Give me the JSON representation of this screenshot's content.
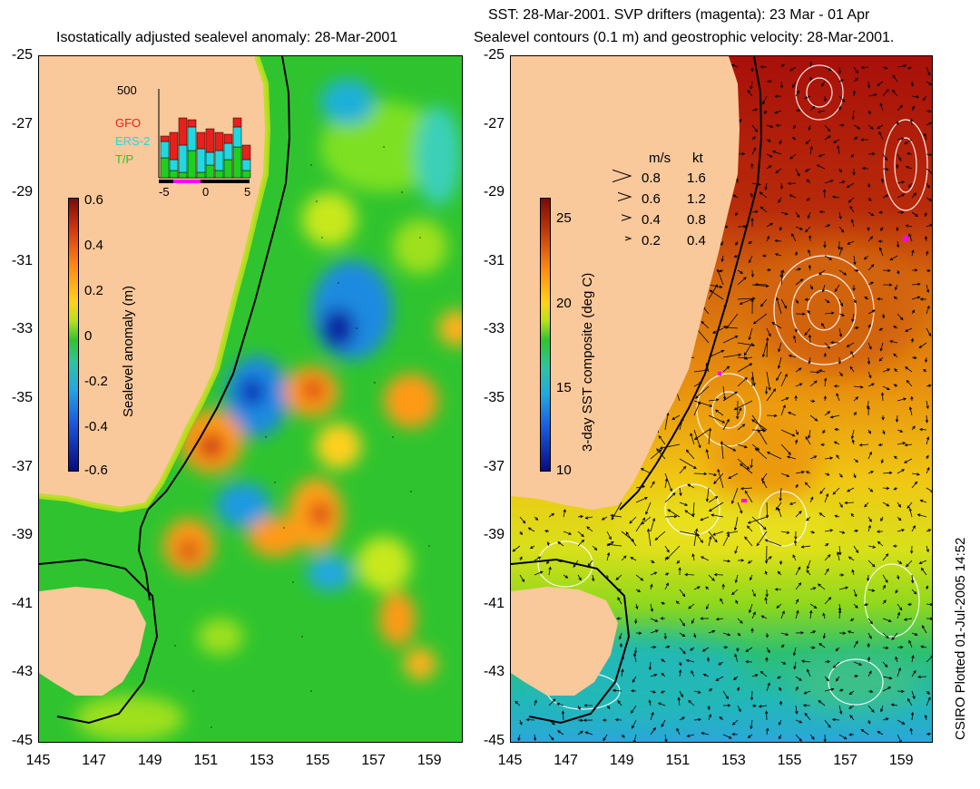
{
  "left_panel": {
    "title": "Isostatically adjusted sealevel anomaly: 28-Mar-2001",
    "colorbar_label": "Sealevel anomaly (m)",
    "colorbar_ticks": [
      "0.6",
      "0.4",
      "0.2",
      "0",
      "-0.2",
      "-0.4",
      "-0.6"
    ],
    "inset": {
      "ymax_label": "500",
      "legend": [
        "GFO",
        "ERS-2",
        "T/P"
      ],
      "legend_colors": [
        "#e8201c",
        "#22d8e0",
        "#1fcf1f"
      ],
      "x_ticks": [
        "-5",
        "0",
        "5"
      ]
    }
  },
  "right_panel": {
    "title_line1": "SST: 28-Mar-2001. SVP drifters (magenta): 23 Mar - 01 Apr",
    "title_line2": "Sealevel contours (0.1 m) and geostrophic velocity: 28-Mar-2001.",
    "colorbar_label": "3-day SST composite (deg C)",
    "colorbar_ticks": [
      "25",
      "20",
      "15",
      "10"
    ],
    "speed_legend": {
      "headers": [
        "m/s",
        "kt"
      ],
      "rows": [
        [
          "0.8",
          "1.6"
        ],
        [
          "0.6",
          "1.2"
        ],
        [
          "0.4",
          "0.8"
        ],
        [
          "0.2",
          "0.4"
        ]
      ]
    }
  },
  "axes": {
    "lat_labels": [
      "-25",
      "-27",
      "-29",
      "-31",
      "-33",
      "-35",
      "-37",
      "-39",
      "-41",
      "-43",
      "-45"
    ],
    "lon_labels": [
      "145",
      "147",
      "149",
      "151",
      "153",
      "155",
      "157",
      "159"
    ]
  },
  "stamp": "CSIRO Plotted 01-Jul-2005 14:52",
  "colors": {
    "land": "#f9c89b",
    "ocean_mid": "#2fc42f"
  }
}
